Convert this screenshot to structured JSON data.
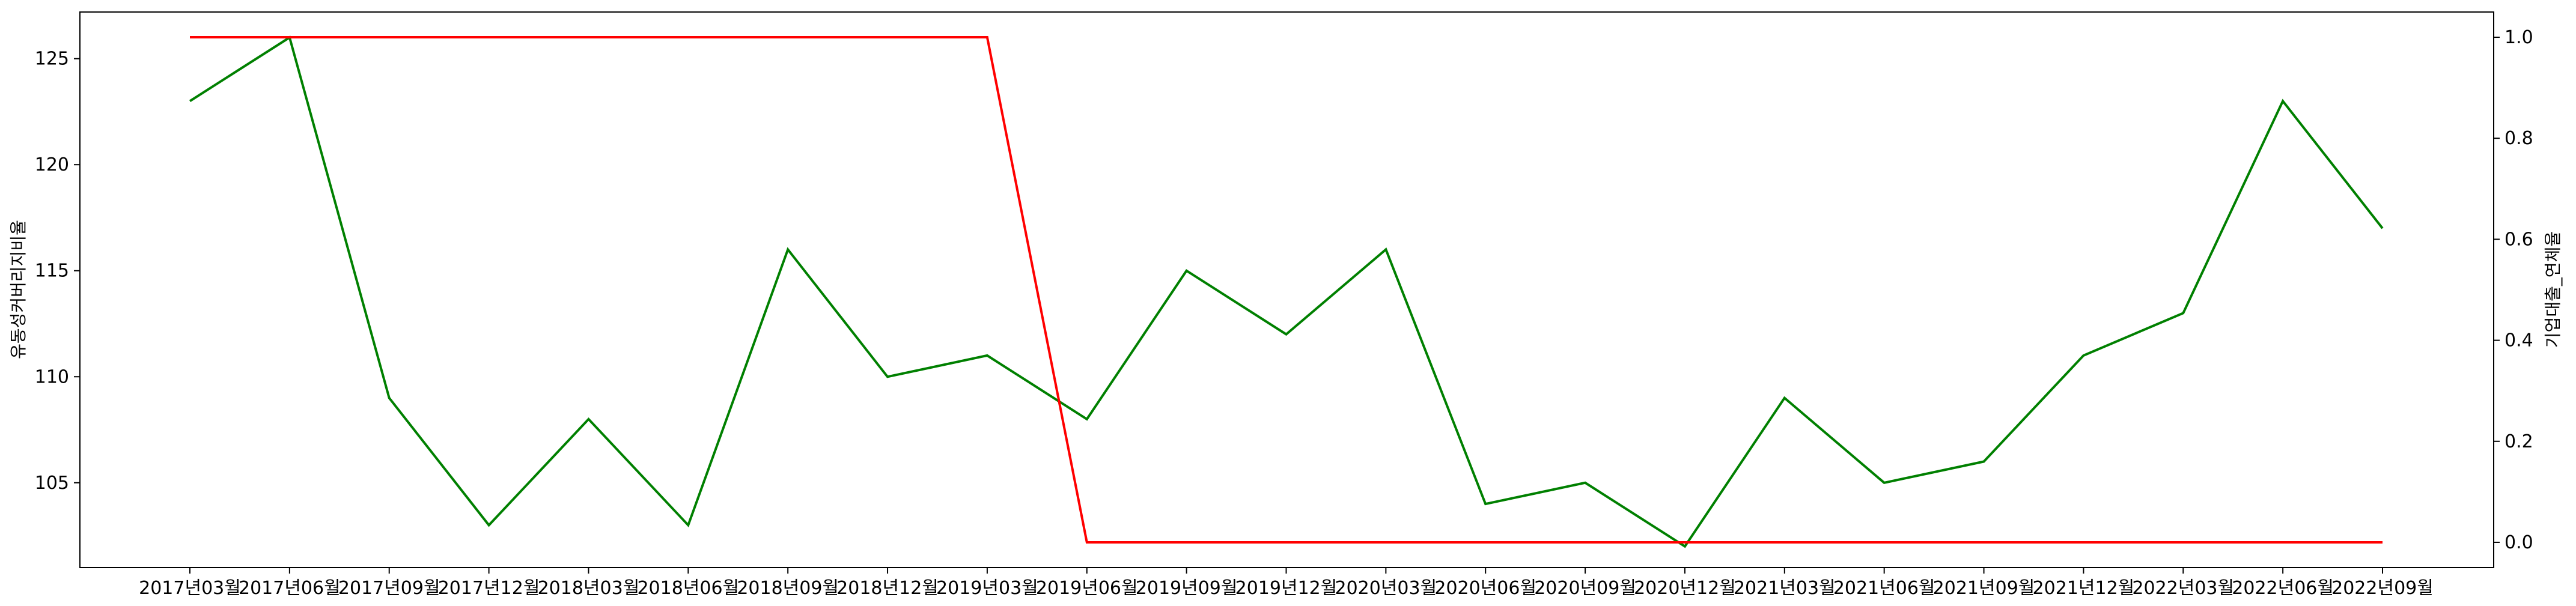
{
  "chart_data": {
    "type": "line",
    "categories": [
      "2017년03월",
      "2017년06월",
      "2017년09월",
      "2017년12월",
      "2018년03월",
      "2018년06월",
      "2018년09월",
      "2018년12월",
      "2019년03월",
      "2019년06월",
      "2019년09월",
      "2019년12월",
      "2020년03월",
      "2020년06월",
      "2020년09월",
      "2020년12월",
      "2021년03월",
      "2021년06월",
      "2021년09월",
      "2021년12월",
      "2022년03월",
      "2022년06월",
      "2022년09월"
    ],
    "series": [
      {
        "axis": "left",
        "color": "#008000",
        "values": [
          123,
          126,
          109,
          103,
          108,
          103,
          116,
          110,
          111,
          108,
          115,
          112,
          116,
          104,
          105,
          102,
          109,
          105,
          106,
          111,
          113,
          123,
          117
        ]
      },
      {
        "axis": "right",
        "color": "#ff0000",
        "values": [
          1,
          1,
          1,
          1,
          1,
          1,
          1,
          1,
          1,
          0,
          0,
          0,
          0,
          0,
          0,
          0,
          0,
          0,
          0,
          0,
          0,
          0,
          0
        ]
      }
    ],
    "ylabel_left": "유동성커버리지비율",
    "ylabel_right": "기업대출_연체율",
    "ylim_left": [
      101.0,
      127.2
    ],
    "yticks_left": [
      105,
      110,
      115,
      120,
      125
    ],
    "ylim_right": [
      -0.05,
      1.05
    ],
    "yticks_right": [
      "0.0",
      "0.2",
      "0.4",
      "0.6",
      "0.8",
      "1.0"
    ],
    "grid": false,
    "legend": "none"
  }
}
